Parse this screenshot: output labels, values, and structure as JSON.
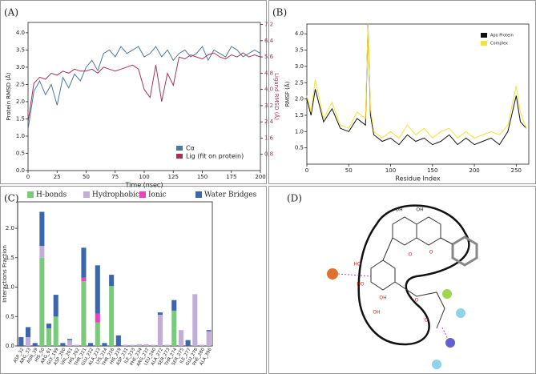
{
  "chart_data": [
    {
      "type": "line",
      "panel_label": "(A)",
      "xlabel": "Time (nsec)",
      "ylabel": "Protein RMSD (Å)",
      "y2label": "Ligand RMSD (Å)",
      "x": [
        0,
        5,
        10,
        15,
        20,
        25,
        30,
        35,
        40,
        45,
        50,
        55,
        60,
        65,
        70,
        75,
        80,
        85,
        90,
        95,
        100,
        105,
        110,
        115,
        120,
        125,
        130,
        135,
        140,
        145,
        150,
        155,
        160,
        165,
        170,
        175,
        180,
        185,
        190,
        195,
        200
      ],
      "xlim": [
        0,
        200
      ],
      "xticks": [
        0,
        25,
        50,
        75,
        100,
        125,
        150,
        175,
        200
      ],
      "ylim": [
        0,
        4.3
      ],
      "yticks": [
        {
          "value": 0,
          "label": "0.0"
        },
        0.5,
        {
          "value": 1,
          "label": "1.0"
        },
        1.5,
        {
          "value": 2,
          "label": "2.0"
        },
        2.5,
        {
          "value": 3,
          "label": "3.0"
        },
        3.5,
        {
          "value": 4,
          "label": "4.0"
        }
      ],
      "y2lim": [
        0,
        7.3
      ],
      "y2ticks": [
        0.8,
        1.6,
        2.4,
        3.2,
        {
          "value": 4,
          "label": "4.0"
        },
        4.8,
        5.6,
        6.4,
        7.2
      ],
      "legend": "lower right",
      "series": [
        {
          "name": "Cα",
          "color": "#4b7b98",
          "values": [
            1.2,
            2.3,
            2.6,
            2.2,
            2.5,
            1.9,
            2.7,
            2.4,
            2.8,
            2.6,
            3.0,
            3.2,
            2.9,
            3.4,
            3.5,
            3.3,
            3.6,
            3.4,
            3.5,
            3.6,
            3.3,
            3.4,
            3.6,
            3.3,
            3.5,
            3.2,
            3.4,
            3.5,
            3.3,
            3.4,
            3.6,
            3.2,
            3.5,
            3.4,
            3.3,
            3.6,
            3.5,
            3.3,
            3.4,
            3.5,
            3.4
          ]
        },
        {
          "name": "Lig (fit on protein)",
          "color": "#a8305a",
          "axis": "y2",
          "values": [
            2.4,
            4.3,
            4.6,
            4.5,
            4.8,
            4.7,
            4.9,
            4.8,
            5.0,
            4.9,
            4.9,
            5.0,
            4.8,
            5.1,
            5.0,
            4.9,
            5.0,
            5.1,
            5.2,
            5.0,
            4.0,
            3.6,
            5.2,
            3.4,
            4.8,
            4.2,
            5.6,
            5.5,
            5.7,
            5.6,
            5.5,
            5.7,
            5.8,
            5.6,
            5.5,
            5.7,
            5.6,
            5.8,
            5.6,
            5.7,
            5.6
          ]
        }
      ]
    },
    {
      "type": "line",
      "panel_label": "(B)",
      "xlabel": "Residue Index",
      "ylabel": "RMSF (Å)",
      "x": [
        0,
        5,
        10,
        20,
        30,
        40,
        50,
        60,
        70,
        73,
        76,
        80,
        90,
        100,
        110,
        120,
        130,
        140,
        150,
        160,
        170,
        180,
        190,
        200,
        210,
        220,
        230,
        240,
        250,
        255,
        262
      ],
      "xlim": [
        0,
        265
      ],
      "xticks": [
        0,
        50,
        100,
        150,
        200,
        250
      ],
      "ylim": [
        0,
        4.3
      ],
      "yticks": [
        0.5,
        {
          "value": 1,
          "label": "1.0"
        },
        1.5,
        {
          "value": 2,
          "label": "2.0"
        },
        2.5,
        {
          "value": 3,
          "label": "3.0"
        },
        3.5,
        {
          "value": 4,
          "label": "4.0"
        }
      ],
      "legend": "upper right",
      "series": [
        {
          "name": "Apo Protein",
          "color": "#111111",
          "values": [
            2.0,
            1.5,
            2.3,
            1.3,
            1.7,
            1.1,
            1.0,
            1.4,
            1.2,
            4.3,
            1.5,
            0.9,
            0.7,
            0.8,
            0.6,
            0.9,
            0.7,
            0.8,
            0.6,
            0.7,
            0.9,
            0.6,
            0.8,
            0.6,
            0.7,
            0.8,
            0.6,
            1.0,
            2.1,
            1.3,
            1.1
          ]
        },
        {
          "name": "Complex",
          "color": "#f2e33a",
          "values": [
            2.1,
            1.6,
            2.6,
            1.4,
            1.9,
            1.2,
            1.1,
            1.6,
            1.4,
            4.3,
            1.7,
            1.0,
            0.8,
            1.0,
            0.8,
            1.2,
            0.9,
            1.1,
            0.8,
            1.0,
            1.1,
            0.8,
            1.0,
            0.8,
            0.9,
            1.0,
            0.9,
            1.2,
            2.4,
            1.6,
            1.1
          ]
        }
      ]
    },
    {
      "type": "bar",
      "stacked": true,
      "panel_label": "(C)",
      "ylabel": "Interactions Fraction",
      "legend": "top",
      "categories": [
        "ASP_32",
        "ARG_33",
        "ASN_39",
        "HIS_50",
        "ARG_61",
        "GLY_199",
        "ASP_200",
        "VAL_201",
        "HIS_202",
        "THR_221",
        "GLU_222",
        "ALA_223",
        "LYS_224",
        "THR_226",
        "HIS_229",
        "ASP_231",
        "ILE_233",
        "PHE_234",
        "ARG_237",
        "LEU_240",
        "ALA_272",
        "SER_273",
        "THR_274",
        "SER_275",
        "ILE_277",
        "GLU_278",
        "PHE_280",
        "ALA_396"
      ],
      "ylim": [
        0,
        2.45
      ],
      "yticks": [
        {
          "value": 0,
          "label": "0.0"
        },
        0.5,
        {
          "value": 1,
          "label": "1.0"
        },
        1.5,
        {
          "value": 2,
          "label": "2.0"
        }
      ],
      "series": [
        {
          "name": "H-bonds",
          "color": "#7bc97b",
          "values": [
            0,
            0,
            0,
            1.5,
            0.3,
            0.5,
            0,
            0,
            0,
            1.1,
            0,
            0.4,
            0,
            1.02,
            0,
            0,
            0,
            0,
            0,
            0,
            0,
            0,
            0.6,
            0,
            0,
            0,
            0,
            0
          ]
        },
        {
          "name": "Hydrophobic",
          "color": "#c2acd9",
          "values": [
            0,
            0.15,
            0,
            0.2,
            0,
            0,
            0,
            0.1,
            0.02,
            0,
            0,
            0,
            0,
            0,
            0,
            0.02,
            0.02,
            0.03,
            0.03,
            0.02,
            0.53,
            0.02,
            0,
            0.27,
            0,
            0.88,
            0.02,
            0.25
          ]
        },
        {
          "name": "Ionic",
          "color": "#ee3fbf",
          "values": [
            0,
            0,
            0,
            0,
            0,
            0,
            0,
            0,
            0,
            0.06,
            0,
            0.15,
            0,
            0,
            0,
            0,
            0,
            0,
            0,
            0,
            0,
            0,
            0,
            0,
            0,
            0,
            0,
            0
          ]
        },
        {
          "name": "Water Bridges",
          "color": "#3a66ad",
          "values": [
            0.15,
            0.17,
            0.05,
            0.58,
            0.08,
            0.37,
            0.05,
            0.02,
            0,
            0.51,
            0.05,
            0.82,
            0.05,
            0.19,
            0.18,
            0,
            0,
            0,
            0,
            0,
            0.04,
            0,
            0.18,
            0,
            0.1,
            0,
            0,
            0.02
          ]
        }
      ]
    }
  ],
  "diagram": {
    "panel_label": "(D)",
    "atom_labels": [
      "OH",
      "OH",
      "O",
      "O",
      "HO",
      "HO",
      "OH",
      "OH",
      "O",
      "O"
    ]
  }
}
